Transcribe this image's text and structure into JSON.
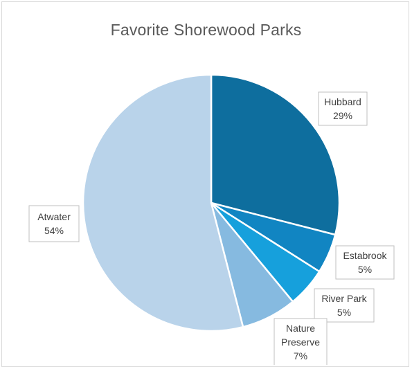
{
  "chart_data": {
    "type": "pie",
    "title": "Favorite Shorewood Parks",
    "slices": [
      {
        "label": "Hubbard",
        "value": 29,
        "percent_label": "29%",
        "color": "#0E6E9E"
      },
      {
        "label": "Estabrook",
        "value": 5,
        "percent_label": "5%",
        "color": "#1185C2"
      },
      {
        "label": "River Park",
        "value": 5,
        "percent_label": "5%",
        "color": "#16A0DC"
      },
      {
        "label": "Nature Preserve",
        "value": 7,
        "percent_label": "7%",
        "color": "#86BAE0"
      },
      {
        "label": "Atwater",
        "value": 54,
        "percent_label": "54%",
        "color": "#B9D3EA"
      }
    ],
    "legend": "none",
    "data_labels": "callouts"
  }
}
